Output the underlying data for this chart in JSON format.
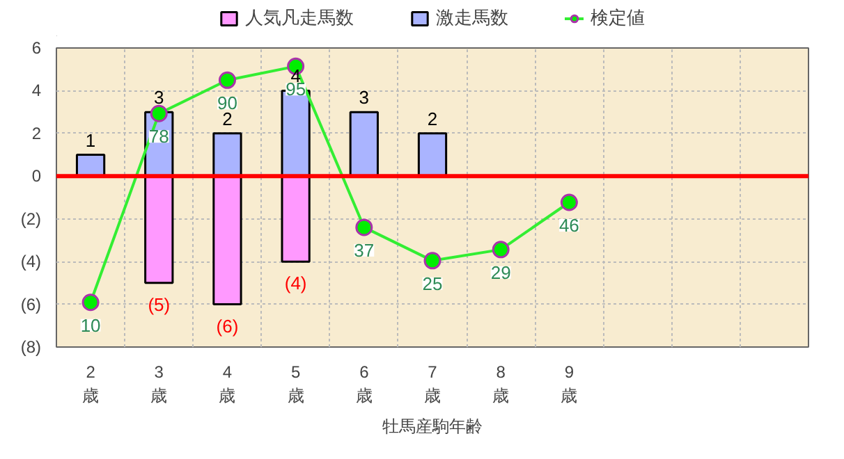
{
  "chart_data": {
    "type": "bar",
    "xlabel": "牡馬産駒年齢",
    "categories": [
      "2\n歳",
      "3\n歳",
      "4\n歳",
      "5\n歳",
      "6\n歳",
      "7\n歳",
      "8\n歳",
      "9\n歳",
      null,
      null,
      null
    ],
    "series": [
      {
        "name": "人気凡走馬数",
        "color": "#ff99ff",
        "values": [
          null,
          -5,
          -6,
          -4,
          null,
          null,
          null,
          null,
          null,
          null,
          null
        ],
        "value_labels": [
          null,
          "(5)",
          "(6)",
          "(4)",
          null,
          null,
          null,
          null,
          null,
          null,
          null
        ]
      },
      {
        "name": "激走馬数",
        "color": "#aab4ff",
        "values": [
          1,
          3,
          2,
          4,
          3,
          2,
          null,
          null,
          null,
          null,
          null
        ],
        "value_labels": [
          "1",
          "3",
          "2",
          "4",
          "3",
          "2",
          null,
          null,
          null,
          null,
          null
        ]
      },
      {
        "name": "検定値",
        "type": "line",
        "axis": "y2",
        "color": "#33ee33",
        "values": [
          10,
          78,
          90,
          95,
          37,
          25,
          29,
          46,
          null,
          null,
          null
        ],
        "value_labels": [
          "10",
          "78",
          "90",
          "95",
          "37",
          "25",
          "29",
          "46",
          null,
          null,
          null
        ]
      }
    ],
    "ylim": [
      -8,
      6
    ],
    "yticks": [
      {
        "value": -8,
        "label": "(8)"
      },
      {
        "value": -6,
        "label": "(6)"
      },
      {
        "value": -4,
        "label": "(4)"
      },
      {
        "value": -2,
        "label": "(2)"
      },
      0,
      2,
      4,
      6
    ],
    "y2lim": [
      -6.1,
      101.6
    ],
    "ref_lines": [
      {
        "axis": "y",
        "value": 0,
        "color": "#ff0000"
      }
    ],
    "grid": true,
    "legend": "top",
    "marker": "circle"
  }
}
